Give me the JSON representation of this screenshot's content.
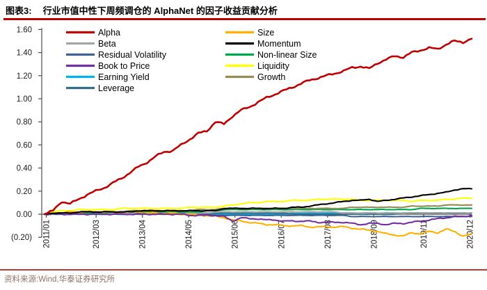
{
  "figure": {
    "label": "图表3:",
    "title": "行业市值中性下周频调仓的 AlphaNet 的因子收益贡献分析"
  },
  "source": {
    "text": "资料来源:Wind,华泰证券研究所"
  },
  "accent_colors": {
    "rule_red": "#C00000",
    "source_text": "#8D7365"
  },
  "chart_data": {
    "type": "line",
    "title": "行业市值中性下周频调仓的 AlphaNet 的因子收益贡献分析",
    "xlabel": "",
    "ylabel": "",
    "ylim": [
      -0.2,
      1.6
    ],
    "grid": false,
    "legend_position": "top-left-two-columns",
    "x_start": 2011.0,
    "x_step": 0.2,
    "x_ticks": {
      "labels": [
        "2011/01",
        "2012/03",
        "2013/04",
        "2014/05",
        "2015/06",
        "2016/07",
        "2017/08",
        "2018/09",
        "2019/11",
        "2020/12"
      ],
      "t": [
        2011.042,
        2012.208,
        2013.292,
        2014.375,
        2015.458,
        2016.542,
        2017.625,
        2018.708,
        2019.875,
        2020.958
      ]
    },
    "y_ticks": {
      "labels": [
        "1.60",
        "1.40",
        "1.20",
        "1.00",
        "0.80",
        "0.60",
        "0.40",
        "0.20",
        "0.00",
        "(0.20)"
      ],
      "values": [
        1.6,
        1.4,
        1.2,
        1.0,
        0.8,
        0.6,
        0.4,
        0.2,
        0.0,
        -0.2
      ]
    },
    "series": [
      {
        "name": "Alpha",
        "color": "#C00000",
        "values": [
          0.0,
          0.03,
          0.11,
          0.09,
          0.13,
          0.17,
          0.2,
          0.23,
          0.27,
          0.31,
          0.36,
          0.41,
          0.45,
          0.5,
          0.54,
          0.55,
          0.6,
          0.65,
          0.7,
          0.72,
          0.8,
          0.78,
          0.85,
          0.9,
          0.93,
          0.97,
          1.01,
          1.04,
          1.07,
          1.1,
          1.13,
          1.16,
          1.18,
          1.2,
          1.22,
          1.24,
          1.27,
          1.28,
          1.26,
          1.31,
          1.34,
          1.37,
          1.36,
          1.4,
          1.42,
          1.44,
          1.43,
          1.47,
          1.5,
          1.49,
          1.52
        ]
      },
      {
        "name": "Beta",
        "color": "#A6A6A6",
        "values": [
          0.0,
          0.0,
          0.01,
          0.01,
          0.01,
          0.01,
          0.01,
          0.01,
          0.01,
          0.01,
          0.01,
          0.01,
          0.01,
          0.01,
          0.01,
          0.01,
          0.01,
          0.01,
          0.01,
          0.01,
          0.02,
          0.02,
          0.02,
          0.02,
          0.02,
          0.02,
          0.02,
          0.02,
          0.02,
          0.02,
          0.02,
          0.02,
          0.02,
          0.02,
          0.02,
          0.01,
          0.01,
          0.01,
          0.01,
          0.01,
          0.01,
          0.01,
          0.01,
          0.01,
          0.01,
          0.01,
          0.01,
          0.01,
          0.01,
          0.01,
          0.01
        ]
      },
      {
        "name": "Residual Volatility",
        "color": "#3E6292",
        "values": [
          0.0,
          0.0,
          0.0,
          0.0,
          0.0,
          0.0,
          0.0,
          0.0,
          0.0,
          0.0,
          0.0,
          0.0,
          0.0,
          0.0,
          0.0,
          0.0,
          0.0,
          0.0,
          0.0,
          0.0,
          -0.01,
          -0.01,
          -0.01,
          -0.01,
          -0.01,
          -0.01,
          -0.01,
          -0.01,
          -0.01,
          -0.01,
          -0.01,
          -0.01,
          -0.01,
          -0.01,
          -0.01,
          -0.01,
          -0.02,
          -0.02,
          -0.02,
          -0.02,
          -0.02,
          -0.02,
          -0.02,
          -0.02,
          -0.02,
          -0.02,
          -0.02,
          -0.02,
          -0.02,
          -0.02,
          -0.02
        ]
      },
      {
        "name": "Book to Price",
        "color": "#7030A0",
        "values": [
          0.0,
          0.0,
          0.0,
          0.0,
          0.0,
          0.0,
          0.0,
          0.0,
          0.0,
          0.0,
          0.0,
          0.0,
          0.0,
          0.0,
          0.0,
          0.0,
          0.0,
          -0.01,
          -0.01,
          -0.01,
          -0.01,
          -0.02,
          -0.06,
          -0.03,
          -0.04,
          -0.04,
          -0.05,
          -0.05,
          -0.06,
          -0.06,
          -0.06,
          -0.06,
          -0.07,
          -0.07,
          -0.07,
          -0.07,
          -0.08,
          -0.09,
          -0.08,
          -0.08,
          -0.09,
          -0.08,
          -0.08,
          -0.07,
          -0.06,
          -0.05,
          -0.04,
          -0.03,
          -0.02,
          -0.02,
          -0.01
        ]
      },
      {
        "name": "Earning Yield",
        "color": "#00B0F0",
        "values": [
          0.0,
          0.0,
          0.0,
          0.0,
          0.0,
          0.0,
          0.0,
          0.0,
          0.0,
          0.0,
          0.0,
          0.0,
          0.01,
          0.01,
          0.01,
          0.01,
          0.01,
          0.01,
          0.01,
          0.01,
          0.0,
          0.0,
          0.0,
          0.0,
          0.0,
          0.0,
          0.0,
          0.0,
          0.0,
          0.01,
          0.01,
          0.01,
          0.01,
          0.01,
          0.01,
          0.01,
          0.01,
          0.01,
          0.01,
          0.01,
          0.01,
          0.01,
          0.01,
          0.01,
          0.01,
          0.01,
          0.01,
          0.01,
          0.01,
          0.01,
          0.01
        ]
      },
      {
        "name": "Leverage",
        "color": "#336F85",
        "values": [
          0.0,
          0.0,
          0.0,
          0.0,
          0.0,
          0.0,
          0.0,
          0.0,
          0.0,
          0.01,
          0.01,
          0.01,
          0.01,
          0.01,
          0.01,
          0.01,
          0.01,
          0.01,
          0.01,
          0.01,
          0.01,
          0.01,
          0.01,
          0.01,
          0.01,
          0.01,
          0.01,
          0.01,
          0.01,
          0.0,
          0.0,
          0.0,
          0.0,
          0.0,
          0.0,
          0.0,
          0.0,
          0.0,
          0.0,
          0.0,
          0.0,
          0.0,
          0.01,
          0.01,
          0.01,
          0.01,
          0.01,
          0.01,
          0.01,
          0.01,
          0.01
        ]
      },
      {
        "name": "Size",
        "color": "#FFB000",
        "values": [
          0.0,
          0.01,
          0.01,
          0.02,
          0.02,
          0.02,
          0.02,
          0.02,
          0.02,
          0.02,
          0.02,
          0.02,
          0.01,
          0.01,
          0.01,
          0.01,
          0.0,
          0.0,
          -0.01,
          -0.01,
          -0.02,
          -0.03,
          -0.05,
          -0.06,
          -0.07,
          -0.08,
          -0.09,
          -0.09,
          -0.1,
          -0.1,
          -0.1,
          -0.11,
          -0.11,
          -0.11,
          -0.11,
          -0.11,
          -0.12,
          -0.13,
          -0.14,
          -0.15,
          -0.17,
          -0.18,
          -0.19,
          -0.16,
          -0.17,
          -0.15,
          -0.16,
          -0.13,
          -0.15,
          -0.19,
          -0.17
        ]
      },
      {
        "name": "Momentum",
        "color": "#000000",
        "values": [
          0.0,
          0.01,
          0.01,
          0.01,
          0.02,
          0.02,
          0.02,
          0.02,
          0.02,
          0.02,
          0.02,
          0.03,
          0.03,
          0.03,
          0.03,
          0.03,
          0.03,
          0.03,
          0.03,
          0.03,
          0.03,
          0.05,
          0.05,
          0.05,
          0.05,
          0.05,
          0.05,
          0.05,
          0.05,
          0.06,
          0.06,
          0.07,
          0.08,
          0.09,
          0.1,
          0.11,
          0.12,
          0.12,
          0.13,
          0.11,
          0.12,
          0.13,
          0.14,
          0.15,
          0.16,
          0.17,
          0.18,
          0.19,
          0.21,
          0.22,
          0.22
        ]
      },
      {
        "name": "Non-linear Size",
        "color": "#00A550",
        "values": [
          0.0,
          0.01,
          0.01,
          0.01,
          0.01,
          0.01,
          0.01,
          0.01,
          0.02,
          0.02,
          0.02,
          0.02,
          0.02,
          0.02,
          0.02,
          0.02,
          0.02,
          0.02,
          0.02,
          0.03,
          0.03,
          0.04,
          0.04,
          0.04,
          0.04,
          0.04,
          0.04,
          0.04,
          0.04,
          0.04,
          0.04,
          0.04,
          0.04,
          0.04,
          0.04,
          0.04,
          0.04,
          0.04,
          0.04,
          0.04,
          0.04,
          0.04,
          0.04,
          0.04,
          0.05,
          0.05,
          0.05,
          0.05,
          0.05,
          0.05,
          0.05
        ]
      },
      {
        "name": "Liquidity",
        "color": "#FFFF00",
        "values": [
          0.0,
          0.02,
          0.03,
          0.03,
          0.04,
          0.04,
          0.04,
          0.04,
          0.04,
          0.05,
          0.05,
          0.05,
          0.05,
          0.05,
          0.05,
          0.05,
          0.05,
          0.06,
          0.06,
          0.06,
          0.06,
          0.07,
          0.08,
          0.09,
          0.1,
          0.1,
          0.11,
          0.11,
          0.11,
          0.12,
          0.12,
          0.12,
          0.13,
          0.13,
          0.13,
          0.13,
          0.13,
          0.12,
          0.12,
          0.12,
          0.12,
          0.12,
          0.12,
          0.11,
          0.12,
          0.12,
          0.12,
          0.13,
          0.13,
          0.14,
          0.14
        ]
      },
      {
        "name": "Growth",
        "color": "#948A54",
        "values": [
          0.0,
          0.01,
          0.01,
          0.01,
          0.01,
          0.02,
          0.02,
          0.02,
          0.02,
          0.02,
          0.03,
          0.03,
          0.03,
          0.03,
          0.03,
          0.03,
          0.03,
          0.03,
          0.04,
          0.04,
          0.04,
          0.05,
          0.05,
          0.05,
          0.05,
          0.05,
          0.05,
          0.05,
          0.05,
          0.05,
          0.05,
          0.05,
          0.05,
          0.05,
          0.05,
          0.05,
          0.06,
          0.06,
          0.06,
          0.06,
          0.06,
          0.06,
          0.06,
          0.07,
          0.07,
          0.07,
          0.07,
          0.08,
          0.08,
          0.08,
          0.08
        ]
      }
    ]
  }
}
